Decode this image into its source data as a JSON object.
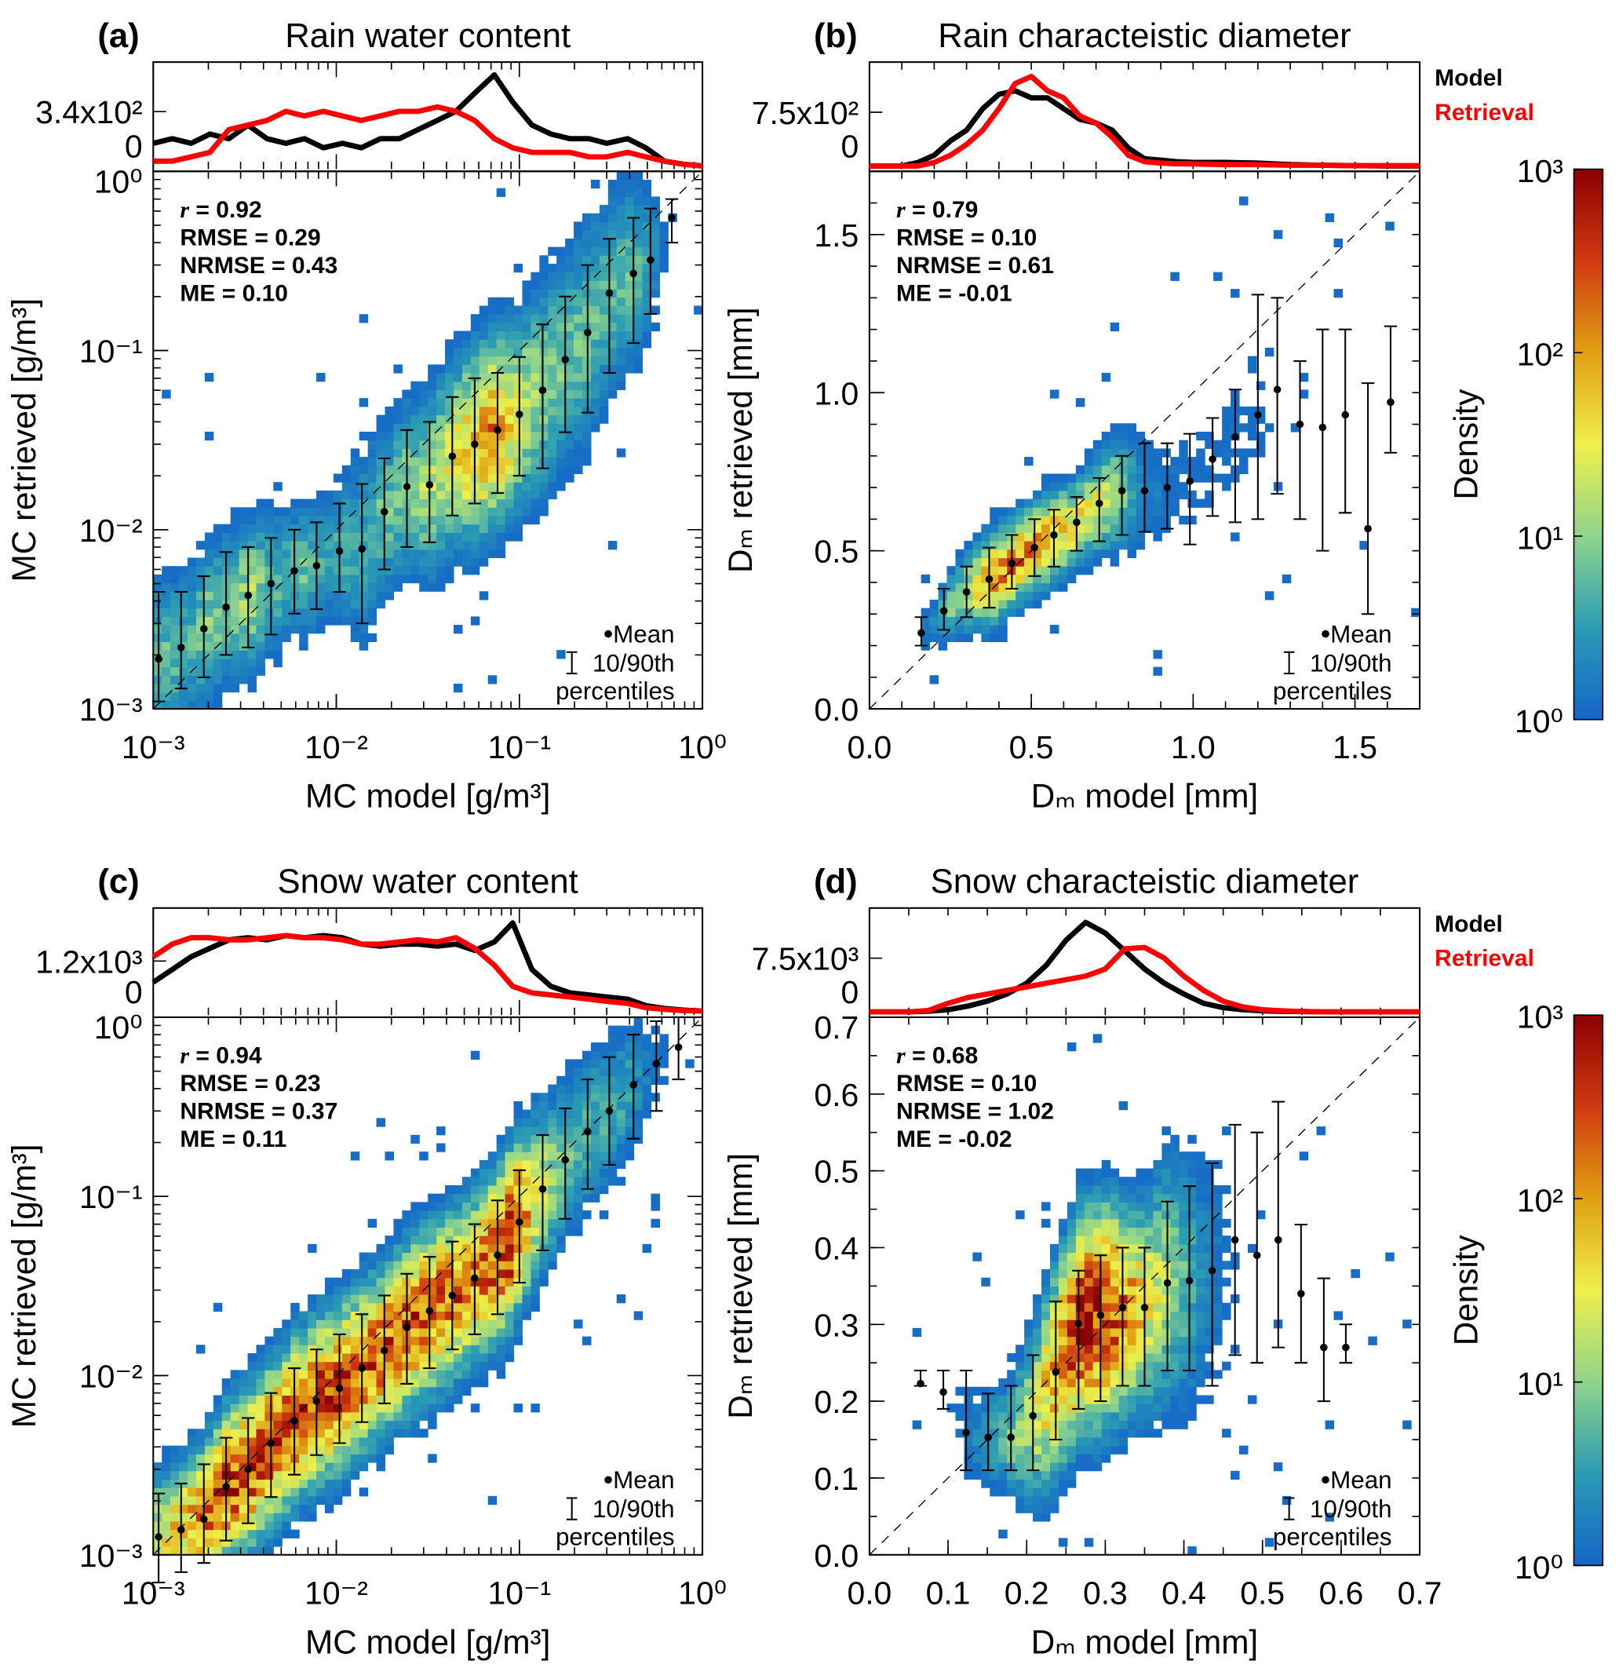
{
  "legend_lines": {
    "model": "Model",
    "retrieval": "Retrieval",
    "model_color": "#000000",
    "retrieval_color": "#ff0000"
  },
  "colorbar": {
    "label": "Density",
    "tick_labels": [
      "10³",
      "10²",
      "10¹",
      "10⁰"
    ],
    "range": [
      1,
      1000
    ],
    "scale": "log",
    "colors": [
      "#1466c8",
      "#2a9cb4",
      "#8fd48c",
      "#eef04a",
      "#e0a012",
      "#d03a10",
      "#8b0000"
    ]
  },
  "mean_legend": {
    "mean": "Mean",
    "percentiles_line1": "10/90th",
    "percentiles_line2": "percentiles"
  },
  "chart_data": [
    {
      "id": "a",
      "panel_label": "(a)",
      "title": "Rain water content",
      "type": "heatmap",
      "xlabel": "MC model [g/m³]",
      "ylabel": "MC retrieved [g/m³]",
      "scale": "log",
      "xlim": [
        0.001,
        1
      ],
      "ylim": [
        0.001,
        1
      ],
      "x_ticks": [
        0.001,
        0.01,
        0.1,
        1
      ],
      "x_tick_labels": [
        "10⁻³",
        "10⁻²",
        "10⁻¹",
        "10⁰"
      ],
      "y_ticks": [
        0.001,
        0.01,
        0.1,
        1
      ],
      "y_tick_labels": [
        "10⁻³",
        "10⁻²",
        "10⁻¹",
        "10⁰"
      ],
      "stats": [
        {
          "label": "r",
          "value": "0.92"
        },
        {
          "label": "RMSE",
          "value": "0.29"
        },
        {
          "label": "NRMSE",
          "value": "0.43"
        },
        {
          "label": "ME",
          "value": "0.10"
        }
      ],
      "means": {
        "x": [
          0.00107,
          0.00142,
          0.00189,
          0.0025,
          0.0033,
          0.0044,
          0.0059,
          0.0078,
          0.0104,
          0.0138,
          0.0183,
          0.0243,
          0.0323,
          0.043,
          0.057,
          0.076,
          0.1,
          0.134,
          0.178,
          0.236,
          0.31,
          0.42,
          0.52,
          0.68
        ],
        "y": [
          0.0019,
          0.0022,
          0.0028,
          0.0037,
          0.0043,
          0.005,
          0.0059,
          0.0063,
          0.0076,
          0.0078,
          0.0126,
          0.0174,
          0.0178,
          0.0257,
          0.03,
          0.036,
          0.044,
          0.06,
          0.089,
          0.126,
          0.209,
          0.269,
          0.32,
          0.55
        ],
        "p10": [
          0.0011,
          0.0013,
          0.0015,
          0.002,
          0.0022,
          0.0026,
          0.0034,
          0.0036,
          0.0045,
          0.003,
          0.006,
          0.008,
          0.0085,
          0.012,
          0.014,
          0.016,
          0.02,
          0.022,
          0.035,
          0.045,
          0.075,
          0.11,
          0.16,
          0.4
        ],
        "p90": [
          0.0045,
          0.0045,
          0.0055,
          0.0075,
          0.008,
          0.009,
          0.01,
          0.011,
          0.014,
          0.018,
          0.025,
          0.036,
          0.04,
          0.055,
          0.07,
          0.075,
          0.092,
          0.14,
          0.2,
          0.3,
          0.42,
          0.55,
          0.62,
          0.7
        ]
      },
      "histogram": {
        "tick_label": "3.4x10²",
        "tick_value": 340,
        "zero_label": "0",
        "ylim": [
          0,
          650
        ],
        "x": [
          0.001,
          0.00127,
          0.00161,
          0.00204,
          0.00259,
          0.00329,
          0.00418,
          0.0053,
          0.0067,
          0.0085,
          0.0108,
          0.0137,
          0.0174,
          0.0221,
          0.028,
          0.0356,
          0.045,
          0.057,
          0.073,
          0.092,
          0.117,
          0.149,
          0.189,
          0.24,
          0.3,
          0.39,
          0.49,
          0.62,
          0.79,
          1.0
        ],
        "model": [
          142,
          171,
          142,
          200,
          171,
          256,
          171,
          142,
          171,
          114,
          142,
          114,
          171,
          171,
          228,
          285,
          342,
          456,
          570,
          400,
          256,
          200,
          171,
          171,
          142,
          171,
          114,
          30,
          11,
          0
        ],
        "retrieval": [
          30,
          30,
          57,
          85,
          228,
          256,
          285,
          342,
          313,
          342,
          313,
          285,
          313,
          342,
          342,
          370,
          342,
          285,
          171,
          114,
          85,
          85,
          85,
          57,
          57,
          85,
          57,
          30,
          11,
          0
        ]
      }
    },
    {
      "id": "b",
      "panel_label": "(b)",
      "title": "Rain characteistic diameter",
      "type": "heatmap",
      "xlabel": "Dₘ model [mm]",
      "ylabel": "Dₘ retrieved [mm]",
      "scale": "linear",
      "xlim": [
        0,
        1.7
      ],
      "ylim": [
        0,
        1.7
      ],
      "x_ticks": [
        0,
        0.5,
        1.0,
        1.5
      ],
      "x_tick_labels": [
        "0.0",
        "0.5",
        "1.0",
        "1.5"
      ],
      "y_ticks": [
        0,
        0.5,
        1.0,
        1.5
      ],
      "y_tick_labels": [
        "0.0",
        "0.5",
        "1.0",
        "1.5"
      ],
      "stats": [
        {
          "label": "r",
          "value": "0.79"
        },
        {
          "label": "RMSE",
          "value": "0.10"
        },
        {
          "label": "NRMSE",
          "value": "0.61"
        },
        {
          "label": "ME",
          "value": "-0.01"
        }
      ],
      "means": {
        "x": [
          0.16,
          0.23,
          0.3,
          0.37,
          0.44,
          0.51,
          0.57,
          0.64,
          0.71,
          0.78,
          0.85,
          0.92,
          0.99,
          1.06,
          1.13,
          1.2,
          1.26,
          1.33,
          1.4,
          1.47,
          1.54,
          1.61
        ],
        "y": [
          0.24,
          0.31,
          0.37,
          0.41,
          0.46,
          0.51,
          0.55,
          0.59,
          0.65,
          0.69,
          0.69,
          0.7,
          0.72,
          0.79,
          0.86,
          0.93,
          1.01,
          0.9,
          0.89,
          0.93,
          0.57,
          0.97
        ],
        "p10": [
          0.2,
          0.25,
          0.29,
          0.32,
          0.38,
          0.42,
          0.45,
          0.5,
          0.53,
          0.55,
          0.56,
          0.57,
          0.52,
          0.61,
          0.59,
          0.6,
          0.68,
          0.6,
          0.5,
          0.62,
          0.3,
          0.81
        ],
        "p90": [
          0.29,
          0.38,
          0.45,
          0.51,
          0.55,
          0.6,
          0.63,
          0.67,
          0.73,
          0.8,
          0.84,
          0.84,
          0.87,
          0.92,
          1.01,
          1.31,
          1.3,
          1.1,
          1.2,
          1.2,
          1.03,
          1.21
        ]
      },
      "histogram": {
        "tick_label": "7.5x10²",
        "tick_value": 750,
        "zero_label": "0",
        "ylim": [
          0,
          1450
        ],
        "x": [
          0,
          0.05,
          0.1,
          0.15,
          0.2,
          0.25,
          0.3,
          0.35,
          0.4,
          0.45,
          0.5,
          0.55,
          0.6,
          0.65,
          0.7,
          0.75,
          0.8,
          0.85,
          0.9,
          0.95,
          1.0,
          1.1,
          1.2,
          1.3,
          1.4,
          1.5,
          1.6,
          1.7
        ],
        "model": [
          0,
          0,
          0,
          50,
          150,
          350,
          500,
          800,
          1000,
          1050,
          950,
          950,
          800,
          650,
          600,
          500,
          250,
          100,
          80,
          60,
          50,
          50,
          40,
          20,
          10,
          5,
          0,
          0
        ],
        "retrieval": [
          0,
          0,
          0,
          0,
          50,
          150,
          300,
          500,
          800,
          1150,
          1250,
          1050,
          950,
          700,
          600,
          400,
          150,
          60,
          40,
          30,
          30,
          20,
          20,
          10,
          10,
          5,
          5,
          5
        ]
      },
      "line_legend": true
    },
    {
      "id": "c",
      "panel_label": "(c)",
      "title": "Snow water content",
      "type": "heatmap",
      "xlabel": "MC model [g/m³]",
      "ylabel": "MC retrieved [g/m³]",
      "scale": "log",
      "xlim": [
        0.001,
        1
      ],
      "ylim": [
        0.001,
        1
      ],
      "x_ticks": [
        0.001,
        0.01,
        0.1,
        1
      ],
      "x_tick_labels": [
        "10⁻³",
        "10⁻²",
        "10⁻¹",
        "10⁰"
      ],
      "y_ticks": [
        0.001,
        0.01,
        0.1,
        1
      ],
      "y_tick_labels": [
        "10⁻³",
        "10⁻²",
        "10⁻¹",
        "10⁰"
      ],
      "stats": [
        {
          "label": "r",
          "value": "0.94"
        },
        {
          "label": "RMSE",
          "value": "0.23"
        },
        {
          "label": "NRMSE",
          "value": "0.37"
        },
        {
          "label": "ME",
          "value": "0.11"
        }
      ],
      "means": {
        "x": [
          0.00107,
          0.00142,
          0.00189,
          0.0025,
          0.0033,
          0.0044,
          0.0059,
          0.0078,
          0.0104,
          0.0138,
          0.0183,
          0.0243,
          0.0323,
          0.043,
          0.057,
          0.076,
          0.1,
          0.134,
          0.178,
          0.236,
          0.31,
          0.42,
          0.56,
          0.74
        ],
        "y": [
          0.00126,
          0.00138,
          0.00158,
          0.0024,
          0.003,
          0.0042,
          0.0056,
          0.0072,
          0.0085,
          0.011,
          0.0138,
          0.0186,
          0.023,
          0.028,
          0.035,
          0.047,
          0.072,
          0.11,
          0.16,
          0.23,
          0.3,
          0.42,
          0.55,
          0.68
        ],
        "p10": [
          0.0007,
          0.0008,
          0.0009,
          0.0012,
          0.0015,
          0.0021,
          0.0028,
          0.0036,
          0.0042,
          0.0055,
          0.007,
          0.009,
          0.011,
          0.014,
          0.017,
          0.022,
          0.033,
          0.05,
          0.075,
          0.11,
          0.15,
          0.21,
          0.3,
          0.45
        ],
        "p90": [
          0.0022,
          0.0025,
          0.0032,
          0.0045,
          0.0058,
          0.008,
          0.011,
          0.014,
          0.017,
          0.022,
          0.028,
          0.037,
          0.046,
          0.056,
          0.07,
          0.095,
          0.14,
          0.22,
          0.31,
          0.45,
          0.6,
          0.8,
          0.95,
          1.0
        ]
      },
      "histogram": {
        "tick_label": "1.2x10³",
        "tick_value": 1200,
        "zero_label": "0",
        "ylim": [
          0,
          2450
        ],
        "x": [
          0.001,
          0.00127,
          0.00161,
          0.00204,
          0.00259,
          0.00329,
          0.00418,
          0.0053,
          0.0067,
          0.0085,
          0.0108,
          0.0137,
          0.0174,
          0.0221,
          0.028,
          0.0356,
          0.045,
          0.057,
          0.073,
          0.092,
          0.117,
          0.149,
          0.189,
          0.24,
          0.3,
          0.39,
          0.49,
          0.62,
          0.79,
          1.0
        ],
        "model": [
          700,
          1000,
          1300,
          1500,
          1700,
          1750,
          1700,
          1800,
          1750,
          1800,
          1750,
          1600,
          1550,
          1600,
          1600,
          1550,
          1600,
          1450,
          1650,
          2100,
          1000,
          600,
          450,
          400,
          350,
          300,
          150,
          80,
          40,
          20
        ],
        "retrieval": [
          1300,
          1600,
          1750,
          1750,
          1700,
          1700,
          1750,
          1800,
          1750,
          1750,
          1700,
          1600,
          1600,
          1650,
          1700,
          1650,
          1750,
          1500,
          1100,
          600,
          450,
          400,
          350,
          300,
          250,
          200,
          100,
          60,
          30,
          20
        ]
      }
    },
    {
      "id": "d",
      "panel_label": "(d)",
      "title": "Snow characteistic diameter",
      "type": "heatmap",
      "xlabel": "Dₘ model [mm]",
      "ylabel": "Dₘ retrieved [mm]",
      "scale": "linear",
      "xlim": [
        0,
        0.7
      ],
      "ylim": [
        0,
        0.7
      ],
      "x_ticks": [
        0,
        0.1,
        0.2,
        0.3,
        0.4,
        0.5,
        0.6,
        0.7
      ],
      "x_tick_labels": [
        "0.0",
        "0.1",
        "0.2",
        "0.3",
        "0.4",
        "0.5",
        "0.6",
        "0.7"
      ],
      "y_ticks": [
        0,
        0.1,
        0.2,
        0.3,
        0.4,
        0.5,
        0.6,
        0.7
      ],
      "y_tick_labels": [
        "0.0",
        "0.1",
        "0.2",
        "0.3",
        "0.4",
        "0.5",
        "0.6",
        "0.7"
      ],
      "stats": [
        {
          "label": "r",
          "value": "0.68"
        },
        {
          "label": "RMSE",
          "value": "0.10"
        },
        {
          "label": "NRMSE",
          "value": "1.02"
        },
        {
          "label": "ME",
          "value": "-0.02"
        }
      ],
      "means": {
        "x": [
          0.065,
          0.094,
          0.123,
          0.151,
          0.18,
          0.208,
          0.237,
          0.266,
          0.294,
          0.322,
          0.35,
          0.379,
          0.407,
          0.436,
          0.465,
          0.493,
          0.52,
          0.549,
          0.578,
          0.606
        ],
        "y": [
          0.223,
          0.212,
          0.159,
          0.153,
          0.153,
          0.181,
          0.238,
          0.301,
          0.312,
          0.322,
          0.322,
          0.354,
          0.357,
          0.37,
          0.41,
          0.39,
          0.41,
          0.34,
          0.27,
          0.27
        ],
        "p10": [
          0.22,
          0.19,
          0.11,
          0.11,
          0.11,
          0.11,
          0.15,
          0.19,
          0.2,
          0.22,
          0.22,
          0.24,
          0.24,
          0.22,
          0.26,
          0.25,
          0.27,
          0.25,
          0.2,
          0.25
        ],
        "p90": [
          0.24,
          0.24,
          0.24,
          0.21,
          0.22,
          0.26,
          0.33,
          0.37,
          0.39,
          0.4,
          0.4,
          0.46,
          0.48,
          0.51,
          0.56,
          0.55,
          0.59,
          0.43,
          0.36,
          0.3
        ]
      },
      "histogram": {
        "tick_label": "7.5x10³",
        "tick_value": 7500,
        "zero_label": "0",
        "ylim": [
          0,
          14500
        ],
        "x": [
          0,
          0.025,
          0.05,
          0.075,
          0.1,
          0.125,
          0.15,
          0.175,
          0.2,
          0.225,
          0.25,
          0.275,
          0.3,
          0.325,
          0.35,
          0.375,
          0.4,
          0.425,
          0.45,
          0.475,
          0.5,
          0.525,
          0.55,
          0.575,
          0.6,
          0.625,
          0.65,
          0.675,
          0.7
        ],
        "model": [
          0,
          0,
          0,
          100,
          300,
          800,
          1500,
          2500,
          4000,
          6500,
          10000,
          12500,
          11000,
          8500,
          6000,
          4000,
          2500,
          1200,
          600,
          300,
          150,
          80,
          50,
          0,
          0,
          0,
          0,
          0,
          0
        ],
        "retrieval": [
          0,
          0,
          0,
          200,
          1200,
          2000,
          2500,
          3000,
          3500,
          4000,
          4500,
          5000,
          6000,
          8800,
          9000,
          7500,
          5000,
          3000,
          1500,
          700,
          300,
          150,
          60,
          0,
          0,
          0,
          0,
          0,
          0
        ]
      },
      "line_legend": true
    }
  ]
}
